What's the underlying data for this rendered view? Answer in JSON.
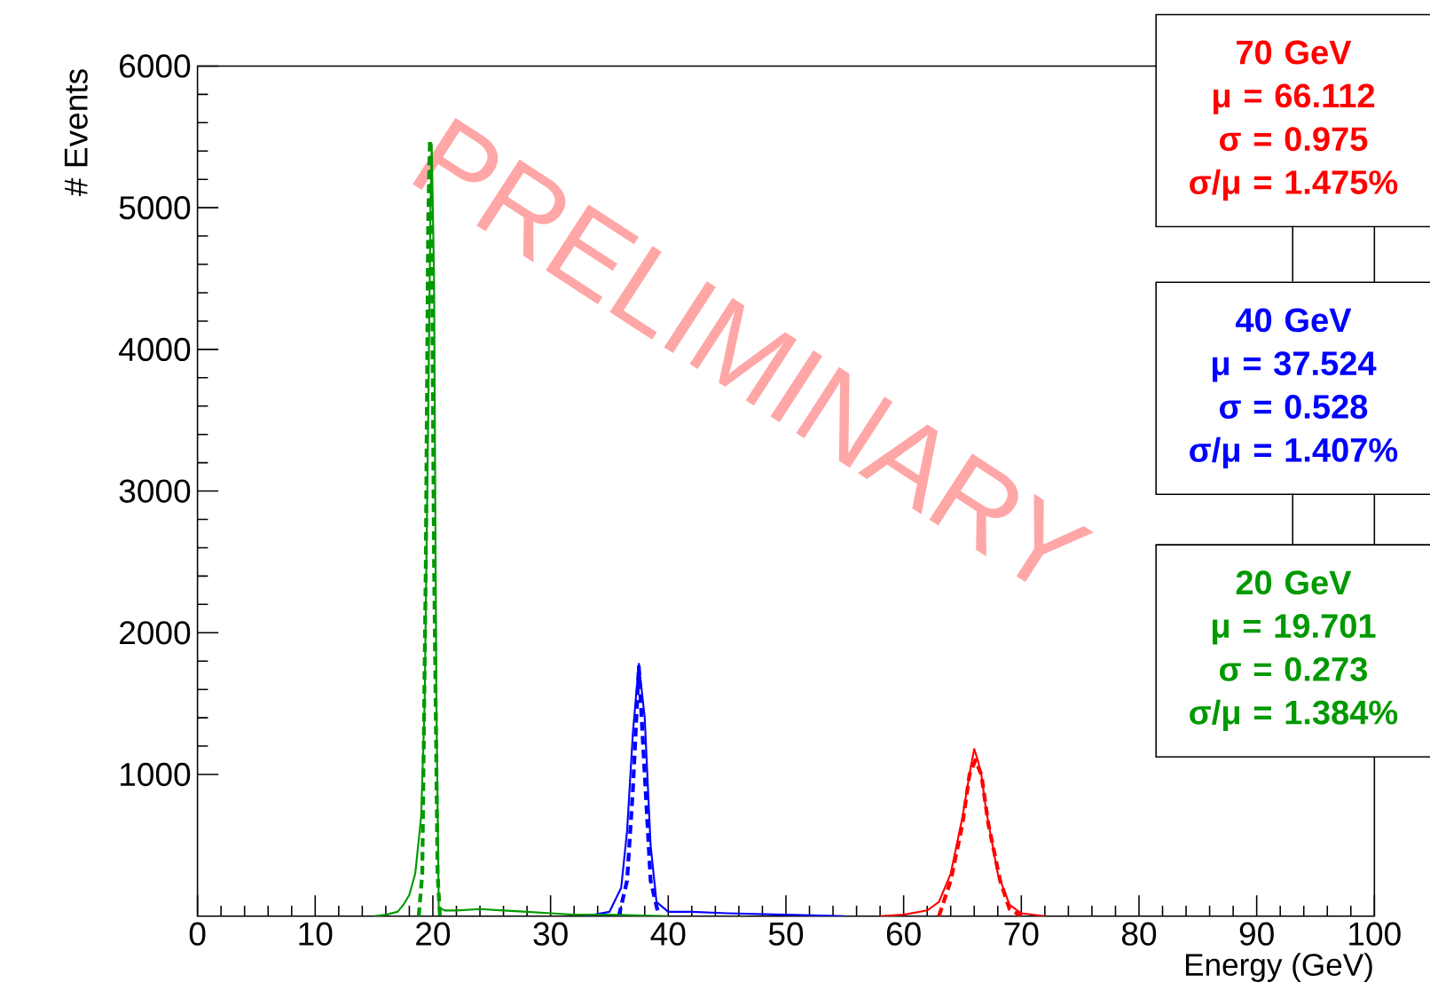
{
  "chart_data": {
    "type": "line",
    "xlabel": "Energy (GeV)",
    "ylabel": "# Events",
    "xlim": [
      0,
      100
    ],
    "ylim": [
      0,
      6000
    ],
    "xticks": [
      0,
      10,
      20,
      30,
      40,
      50,
      60,
      70,
      80,
      90,
      100
    ],
    "yticks": [
      1000,
      2000,
      3000,
      4000,
      5000,
      6000
    ],
    "series": [
      {
        "name": "70 GeV",
        "color": "#ff0000",
        "x": [
          58,
          60,
          62,
          63,
          64,
          65,
          65.7,
          66,
          66.3,
          66.6,
          67,
          68,
          69,
          70,
          72
        ],
        "values": [
          0,
          10,
          40,
          100,
          300,
          700,
          1050,
          1180,
          1100,
          1000,
          750,
          300,
          80,
          20,
          0
        ]
      },
      {
        "color": "#ff0000",
        "line_style": "dashed",
        "x": [
          63,
          64,
          65,
          65.6,
          66.1,
          66.6,
          67.2,
          68.2,
          69,
          70
        ],
        "values": [
          0,
          250,
          650,
          1000,
          1100,
          1000,
          650,
          250,
          50,
          0
        ]
      },
      {
        "name": "40 GeV",
        "color": "#0000ff",
        "x": [
          33,
          35,
          36,
          36.5,
          37,
          37.5,
          38,
          38.5,
          39,
          40,
          42,
          45,
          50,
          55
        ],
        "values": [
          0,
          30,
          200,
          600,
          1300,
          1780,
          1400,
          500,
          100,
          30,
          30,
          20,
          10,
          0
        ]
      },
      {
        "color": "#0000ff",
        "line_style": "dashed",
        "x": [
          35.8,
          36.5,
          37,
          37.5,
          38,
          38.5,
          39.2
        ],
        "values": [
          0,
          250,
          900,
          1760,
          1000,
          250,
          0
        ]
      },
      {
        "name": "20 GeV",
        "color": "#009900",
        "x": [
          15,
          16,
          17,
          17.5,
          18,
          18.5,
          19,
          19.3,
          19.6,
          19.8,
          19.9,
          20.1,
          20.3,
          20.5,
          21,
          22,
          24,
          26,
          28,
          30,
          32,
          35,
          40
        ],
        "values": [
          0,
          10,
          30,
          80,
          150,
          300,
          700,
          1500,
          3500,
          5000,
          5450,
          4500,
          1500,
          60,
          40,
          40,
          50,
          40,
          30,
          20,
          10,
          10,
          0
        ]
      },
      {
        "color": "#009900",
        "line_style": "dashed",
        "x": [
          18.8,
          19.1,
          19.4,
          19.6,
          19.75,
          19.9,
          20.1,
          20.4,
          20.6
        ],
        "values": [
          0,
          300,
          2500,
          4900,
          5480,
          4900,
          2500,
          300,
          0
        ]
      }
    ],
    "annotations": [
      "μ = 66.112",
      "σ = 0.975",
      "σ/μ = 1.475%",
      "μ = 37.524",
      "σ = 0.528",
      "σ/μ = 1.407%",
      "μ = 19.701",
      "σ = 0.273",
      "σ/μ = 1.384%",
      "PRELIMINARY"
    ]
  }
}
